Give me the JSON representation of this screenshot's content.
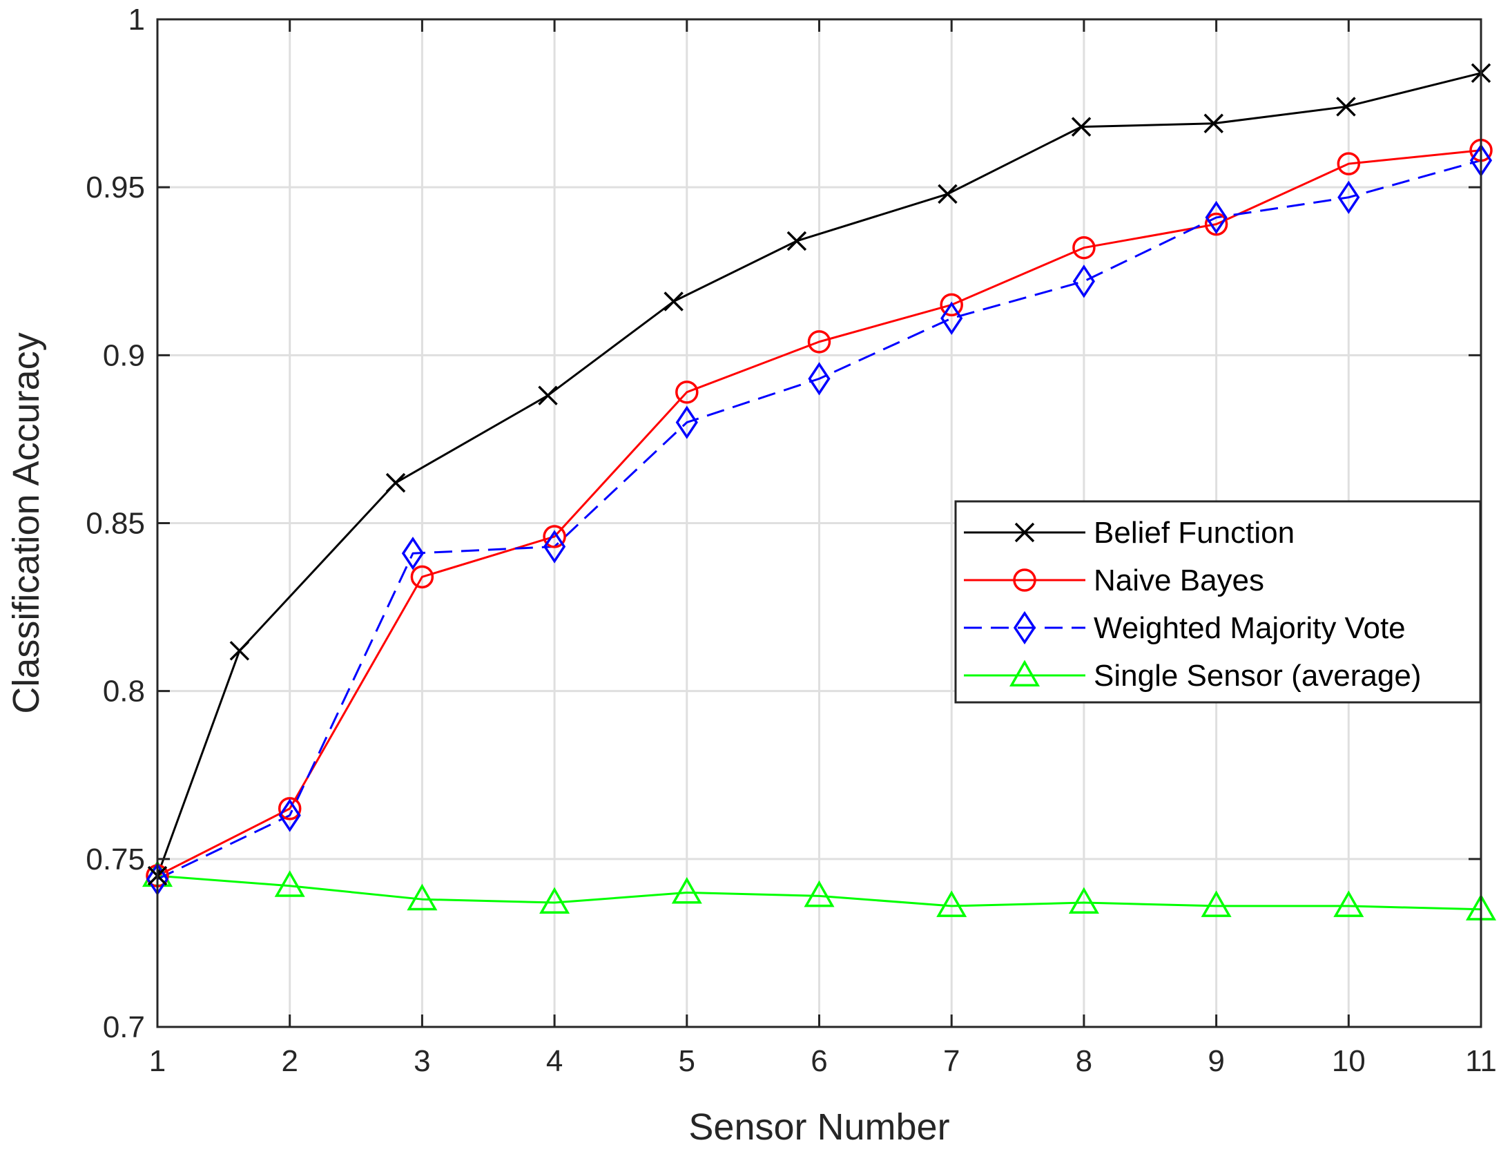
{
  "chart_data": {
    "type": "line",
    "xlabel": "Sensor Number",
    "ylabel": "Classification Accuracy",
    "xlim": [
      1,
      11
    ],
    "ylim": [
      0.7,
      1.0
    ],
    "xticks": [
      "1",
      "2",
      "3",
      "4",
      "5",
      "6",
      "7",
      "8",
      "9",
      "10",
      "11"
    ],
    "yticks": [
      "0.7",
      "0.75",
      "0.8",
      "0.85",
      "0.9",
      "0.95",
      "1"
    ],
    "grid": true,
    "legend_position": "right",
    "series": [
      {
        "name": "Belief Function",
        "color": "#000000",
        "marker": "x",
        "line": "solid",
        "x": [
          1,
          1.62,
          2.8,
          3.95,
          4.9,
          5.83,
          6.97,
          7.98,
          8.98,
          9.98,
          11
        ],
        "y": [
          0.745,
          0.812,
          0.862,
          0.888,
          0.916,
          0.934,
          0.948,
          0.968,
          0.969,
          0.974,
          0.984
        ]
      },
      {
        "name": "Naive Bayes",
        "color": "#ff0000",
        "marker": "o",
        "line": "solid",
        "x": [
          1,
          2,
          3,
          4,
          5,
          6,
          7,
          8,
          9,
          10,
          11
        ],
        "y": [
          0.745,
          0.765,
          0.834,
          0.846,
          0.889,
          0.904,
          0.915,
          0.932,
          0.939,
          0.957,
          0.961
        ]
      },
      {
        "name": "Weighted Majority Vote",
        "color": "#0000ff",
        "marker": "diamond",
        "line": "dashed",
        "x": [
          1,
          2,
          2.93,
          4,
          5,
          6,
          7,
          8,
          9,
          10,
          11
        ],
        "y": [
          0.744,
          0.763,
          0.841,
          0.843,
          0.88,
          0.893,
          0.911,
          0.922,
          0.941,
          0.947,
          0.958
        ]
      },
      {
        "name": "Single Sensor (average)",
        "color": "#00ff00",
        "marker": "triangle",
        "line": "solid",
        "x": [
          1,
          2,
          3,
          4,
          5,
          6,
          7,
          8,
          9,
          10,
          11
        ],
        "y": [
          0.745,
          0.742,
          0.738,
          0.737,
          0.74,
          0.739,
          0.736,
          0.737,
          0.736,
          0.736,
          0.735
        ]
      }
    ]
  }
}
